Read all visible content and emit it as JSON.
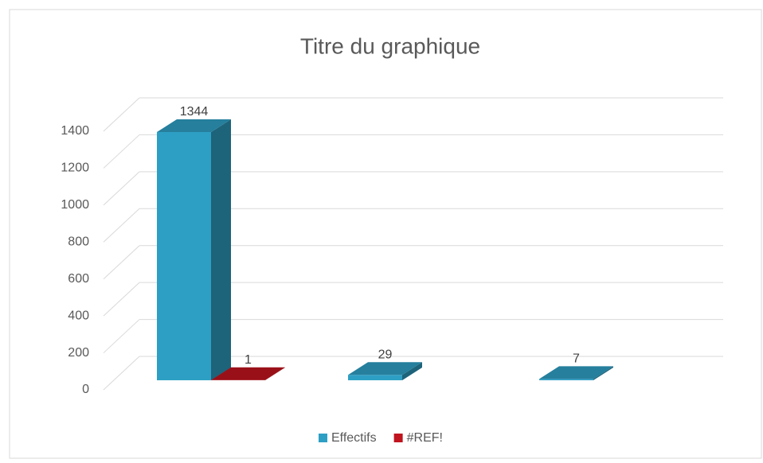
{
  "chart_data": {
    "type": "bar3d",
    "title": "Titre du graphique",
    "categories": [
      null,
      null,
      null
    ],
    "series": [
      {
        "name": "Effectifs",
        "color": "#2e9fc4",
        "values": [
          1344,
          29,
          7
        ]
      },
      {
        "name": "#REF!",
        "color": "#c0141e",
        "values": [
          1,
          null,
          null
        ]
      }
    ],
    "ylim": [
      0,
      1400
    ],
    "yticks": [
      0,
      200,
      400,
      600,
      800,
      1000,
      1200,
      1400
    ],
    "grid": true,
    "legend": "bottom",
    "data_labels": true
  }
}
